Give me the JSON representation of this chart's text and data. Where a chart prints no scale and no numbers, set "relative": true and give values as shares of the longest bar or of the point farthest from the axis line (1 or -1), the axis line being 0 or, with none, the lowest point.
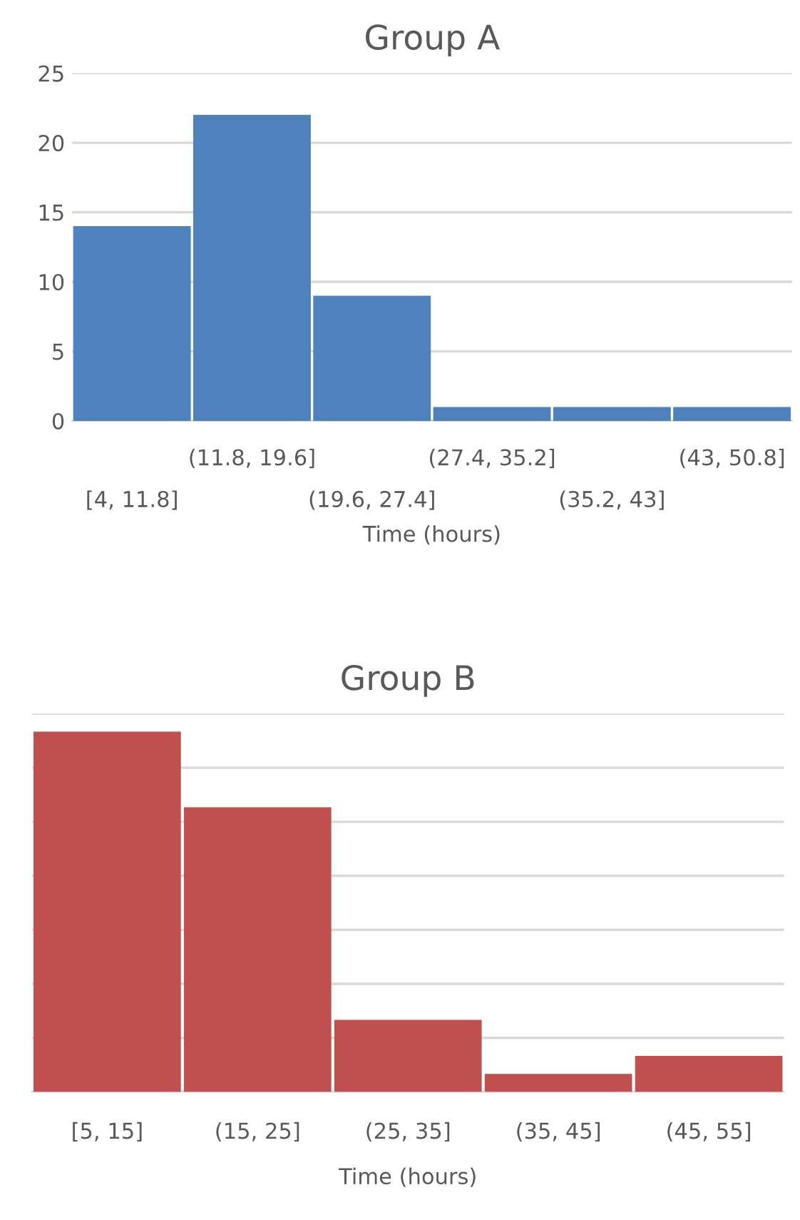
{
  "chart_data": [
    {
      "type": "bar",
      "title": "Group A",
      "xlabel": "Time (hours)",
      "categories": [
        "[4, 11.8]",
        "(11.8, 19.6]",
        "(19.6, 27.4]",
        "(27.4, 35.2]",
        "(35.2, 43]",
        "(43, 50.8]"
      ],
      "values": [
        14,
        22,
        9,
        1,
        1,
        1
      ],
      "color": "#4f81bd",
      "ylim": [
        0,
        25
      ],
      "yticks": [
        0,
        5,
        10,
        15,
        20,
        25
      ],
      "grid": "y"
    },
    {
      "type": "bar",
      "title": "Group B",
      "xlabel": "Time (hours)",
      "categories": [
        "[5, 15]",
        "(15, 25]",
        "(25, 35]",
        "(35, 45]",
        "(45, 55]"
      ],
      "values": [
        1,
        0.79,
        0.2,
        0.05,
        0.1
      ],
      "color": "#c0504d",
      "relative": true,
      "tick_labels": "x",
      "grid": "y"
    }
  ]
}
